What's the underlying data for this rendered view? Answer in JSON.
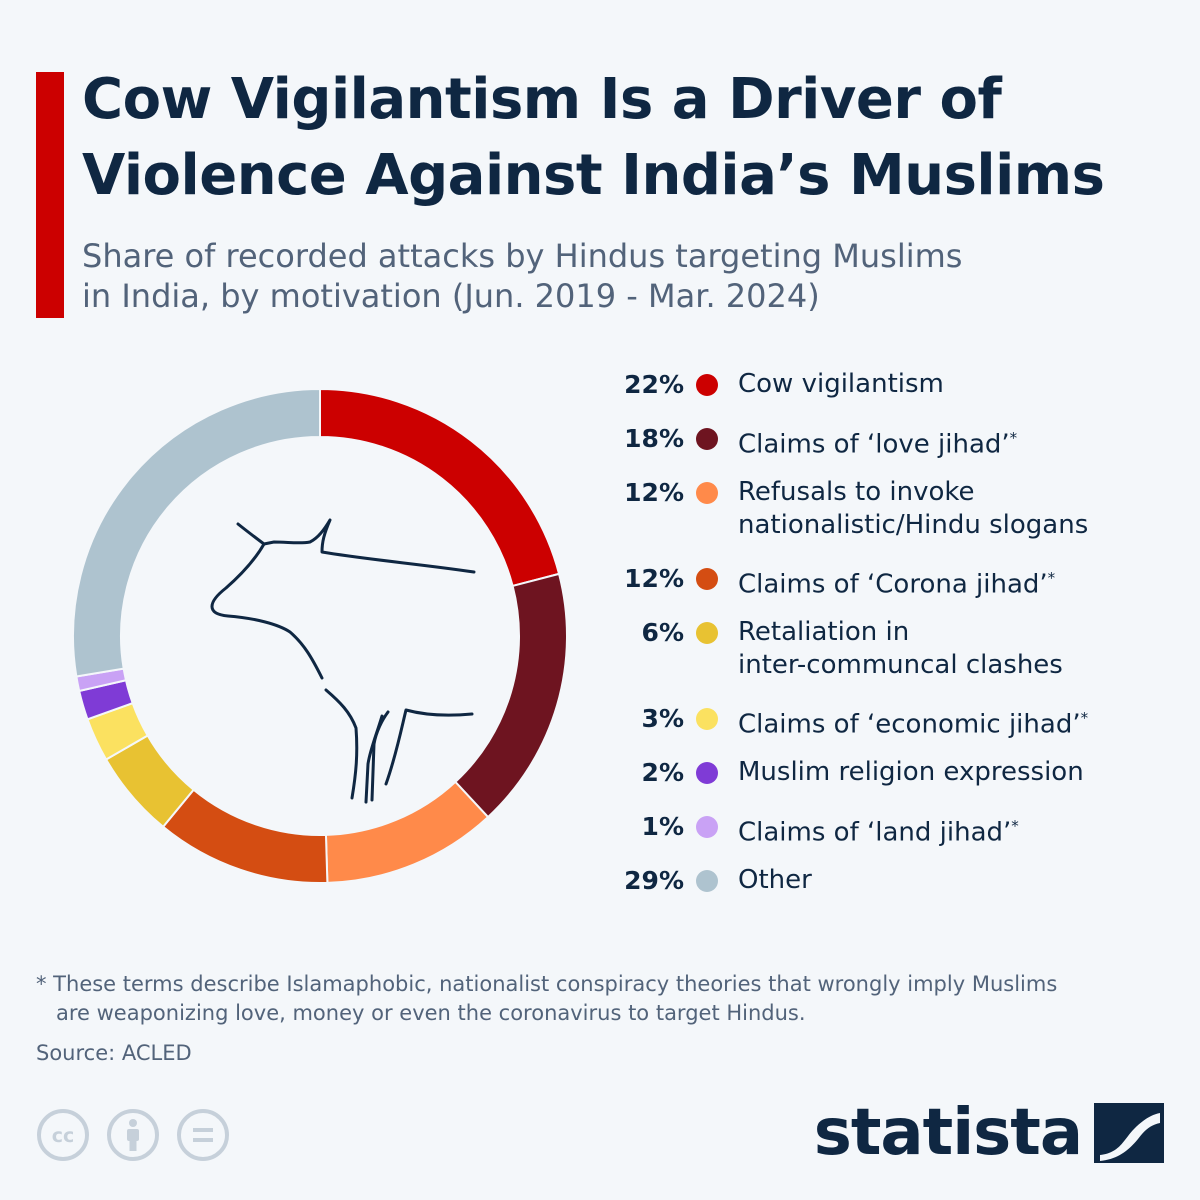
{
  "header": {
    "title_line1": "Cow Vigilantism Is a Driver of",
    "title_line2": "Violence Against India’s Muslims",
    "subtitle_line1": "Share of recorded attacks by Hindus targeting Muslims",
    "subtitle_line2": "in India, by motivation (Jun. 2019 - Mar. 2024)"
  },
  "colors": {
    "accent": "#cc0000",
    "title": "#0f2742",
    "subtitle": "#52637a",
    "background": "#f4f7fa"
  },
  "chart_data": {
    "type": "pie",
    "title": "Share of recorded attacks by Hindus targeting Muslims in India, by motivation (Jun. 2019 - Mar. 2024)",
    "unit": "%",
    "slices": [
      {
        "label": "Cow vigilantism",
        "value": 22,
        "display": "22%",
        "color": "#cc0000",
        "asterisk": false
      },
      {
        "label": "Claims of ‘love jihad’",
        "value": 18,
        "display": "18%",
        "color": "#6e1420",
        "asterisk": true
      },
      {
        "label": "Refusals to invoke nationalistic/Hindu slogans",
        "value": 12,
        "display": "12%",
        "color": "#ff8a4a",
        "asterisk": false
      },
      {
        "label": "Claims of ‘Corona jihad’",
        "value": 12,
        "display": "12%",
        "color": "#d44d12",
        "asterisk": true
      },
      {
        "label": "Retaliation in inter-communcal clashes",
        "value": 6,
        "display": "6%",
        "color": "#e8c232",
        "asterisk": false
      },
      {
        "label": "Claims of ‘economic jihad’",
        "value": 3,
        "display": "3%",
        "color": "#fbe160",
        "asterisk": true
      },
      {
        "label": "Muslim religion expression",
        "value": 2,
        "display": "2%",
        "color": "#7f3bd6",
        "asterisk": false
      },
      {
        "label": "Claims of ‘land jihad’",
        "value": 1,
        "display": "1%",
        "color": "#c9a2f5",
        "asterisk": true
      },
      {
        "label": "Other",
        "value": 29,
        "display": "29%",
        "color": "#aec3cf",
        "asterisk": false
      }
    ],
    "legend_label_lines": [
      [
        "Cow vigilantism"
      ],
      [
        "Claims of ‘love jihad’"
      ],
      [
        "Refusals to invoke",
        "nationalistic/Hindu slogans"
      ],
      [
        "Claims of ‘Corona jihad’"
      ],
      [
        "Retaliation in",
        "inter-communcal clashes"
      ],
      [
        "Claims of ‘economic jihad’"
      ],
      [
        "Muslim religion expression"
      ],
      [
        "Claims of ‘land jihad’"
      ],
      [
        "Other"
      ]
    ],
    "legend_placement": "right",
    "center_icon": "cow-icon"
  },
  "footnote": {
    "line1": "* These terms describe Islamaphobic, nationalist conspiracy theories that wrongly imply Muslims",
    "line2": "are weaponizing love, money or even the coronavirus to target Hindus."
  },
  "source": "Source: ACLED",
  "license_icons": [
    "cc-icon",
    "attribution-icon",
    "no-derivatives-icon"
  ],
  "brand": {
    "name": "statista",
    "logo_icon": "statista-logo-icon"
  }
}
